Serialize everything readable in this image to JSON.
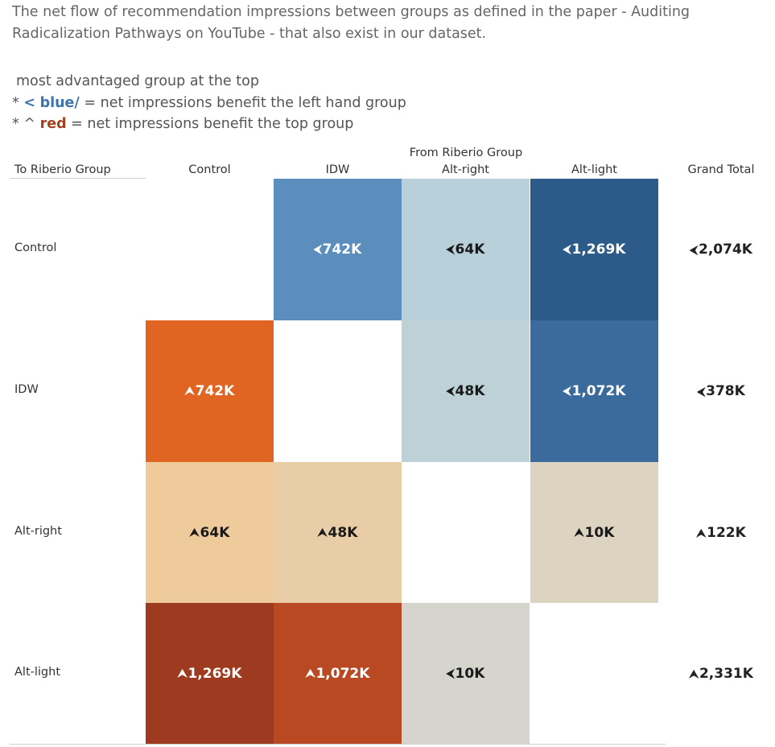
{
  "description": "The net flow of  recommendation impressions between groups as defined in the paper - Auditing Radicalization Pathways on YouTube -  that also exist in our dataset.",
  "legend": {
    "line1": "most advantaged group at the top",
    "line2": {
      "prefix": "* ",
      "marker": "<",
      "keyword": "blue/",
      "text": " =  net impressions benefit the left hand group"
    },
    "line3": {
      "prefix": "* ",
      "marker": "^",
      "keyword": "red",
      "text": " = net impressions benefit the top group"
    }
  },
  "chart_data": {
    "type": "heatmap",
    "row_header": "To Riberio Group",
    "column_header": "From Riberio Group",
    "columns": [
      "Control",
      "IDW",
      "Alt-right",
      "Alt-light"
    ],
    "rows": [
      "Control",
      "IDW",
      "Alt-right",
      "Alt-light"
    ],
    "total_label": "Grand Total",
    "markers": {
      "left": "<",
      "up": "^"
    },
    "cells": [
      [
        null,
        {
          "text": "742K",
          "value": 742,
          "dir": "left",
          "color": "#5b8dbd"
        },
        {
          "text": "64K",
          "value": 64,
          "dir": "left",
          "color": "#b8d0d9"
        },
        {
          "text": "1,269K",
          "value": 1269,
          "dir": "left",
          "color": "#2c5b8a"
        }
      ],
      [
        {
          "text": "742K",
          "value": 742,
          "dir": "up",
          "color": "#e06422"
        },
        null,
        {
          "text": "48K",
          "value": 48,
          "dir": "left",
          "color": "#bdd1d6"
        },
        {
          "text": "1,072K",
          "value": 1072,
          "dir": "left",
          "color": "#3a6b9c"
        }
      ],
      [
        {
          "text": "64K",
          "value": 64,
          "dir": "up",
          "color": "#efcb9b"
        },
        {
          "text": "48K",
          "value": 48,
          "dir": "up",
          "color": "#e8cda6"
        },
        null,
        {
          "text": "10K",
          "value": 10,
          "dir": "up",
          "color": "#ddd3c1"
        }
      ],
      [
        {
          "text": "1,269K",
          "value": 1269,
          "dir": "up",
          "color": "#9e3a20"
        },
        {
          "text": "1,072K",
          "value": 1072,
          "dir": "up",
          "color": "#b94922"
        },
        {
          "text": "10K",
          "value": 10,
          "dir": "left",
          "color": "#d5d5cd"
        },
        null
      ]
    ],
    "totals": [
      {
        "text": "2,074K",
        "value": 2074,
        "dir": "left"
      },
      {
        "text": "378K",
        "value": 378,
        "dir": "left"
      },
      {
        "text": "122K",
        "value": 122,
        "dir": "up"
      },
      {
        "text": "2,331K",
        "value": 2331,
        "dir": "up"
      }
    ]
  }
}
